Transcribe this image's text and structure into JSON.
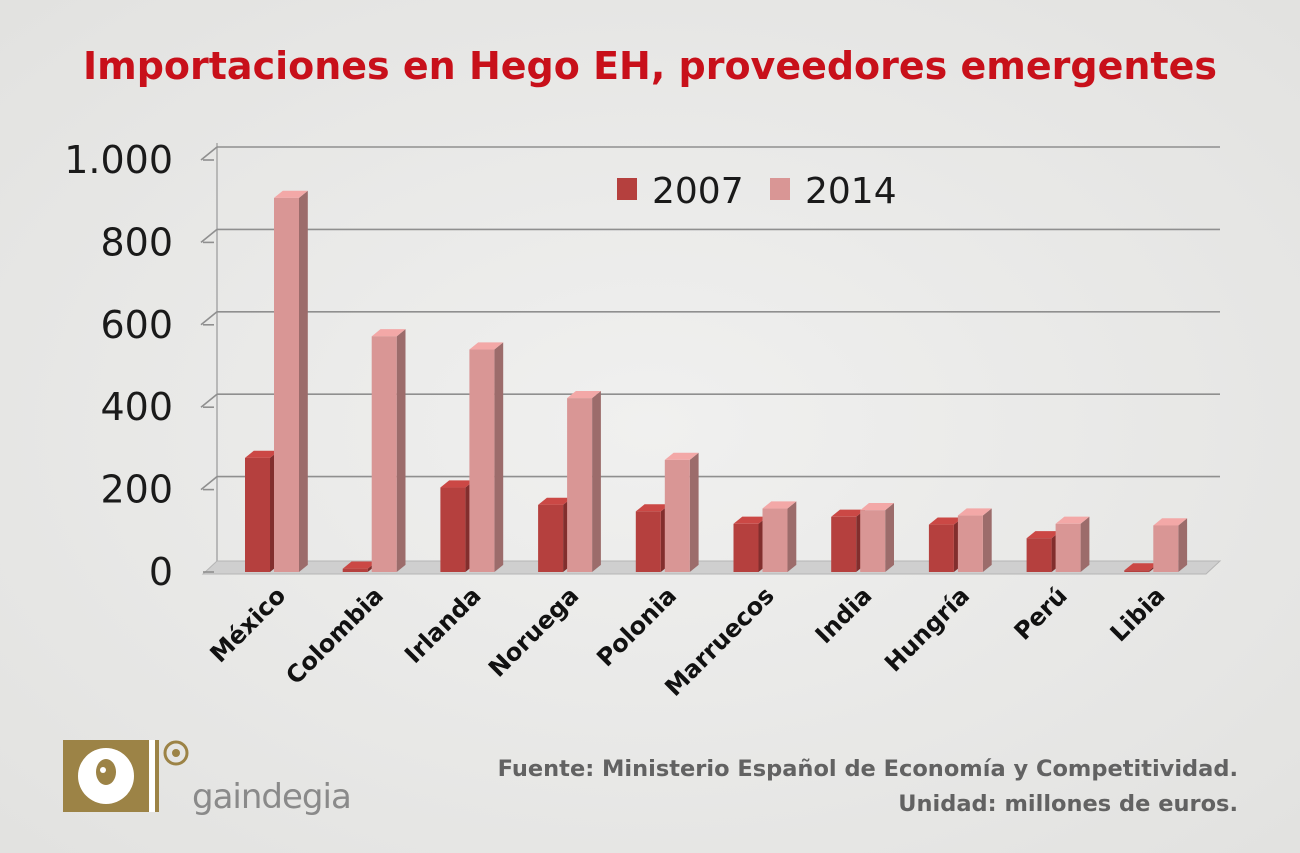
{
  "title": "Importaciones en Hego EH, proveedores emergentes",
  "source_line": "Fuente: Ministerio Español de Economía y Competitividad.",
  "unit_line": "Unidad: millones de euros.",
  "brand": {
    "name": "gaindegia",
    "initial": "g"
  },
  "colors": {
    "title": "#c8101a",
    "series_2007": "#b5403e",
    "series_2014": "#d99695",
    "text": "#1a1a1a",
    "source": "#626262",
    "logo_gold": "#9c8346"
  },
  "chart_data": {
    "type": "bar",
    "title": "Importaciones en Hego EH, proveedores emergentes",
    "xlabel": "",
    "ylabel": "",
    "unit": "millones de euros",
    "ylim": [
      0,
      1000
    ],
    "yticks": [
      0,
      200,
      400,
      600,
      800,
      1000
    ],
    "ytick_labels": [
      "0",
      "200",
      "400",
      "600",
      "800",
      "1.000"
    ],
    "grid": true,
    "legend_position": "top",
    "categories": [
      "México",
      "Colombia",
      "Irlanda",
      "Noruega",
      "Polonia",
      "Marruecos",
      "India",
      "Hungría",
      "Perú",
      "Libia"
    ],
    "series": [
      {
        "name": "2007",
        "color": "#b5403e",
        "values": [
          277,
          8,
          205,
          163,
          147,
          117,
          134,
          115,
          82,
          4
        ]
      },
      {
        "name": "2014",
        "color": "#d99695",
        "values": [
          908,
          572,
          540,
          422,
          272,
          154,
          150,
          137,
          117,
          113
        ]
      }
    ]
  }
}
